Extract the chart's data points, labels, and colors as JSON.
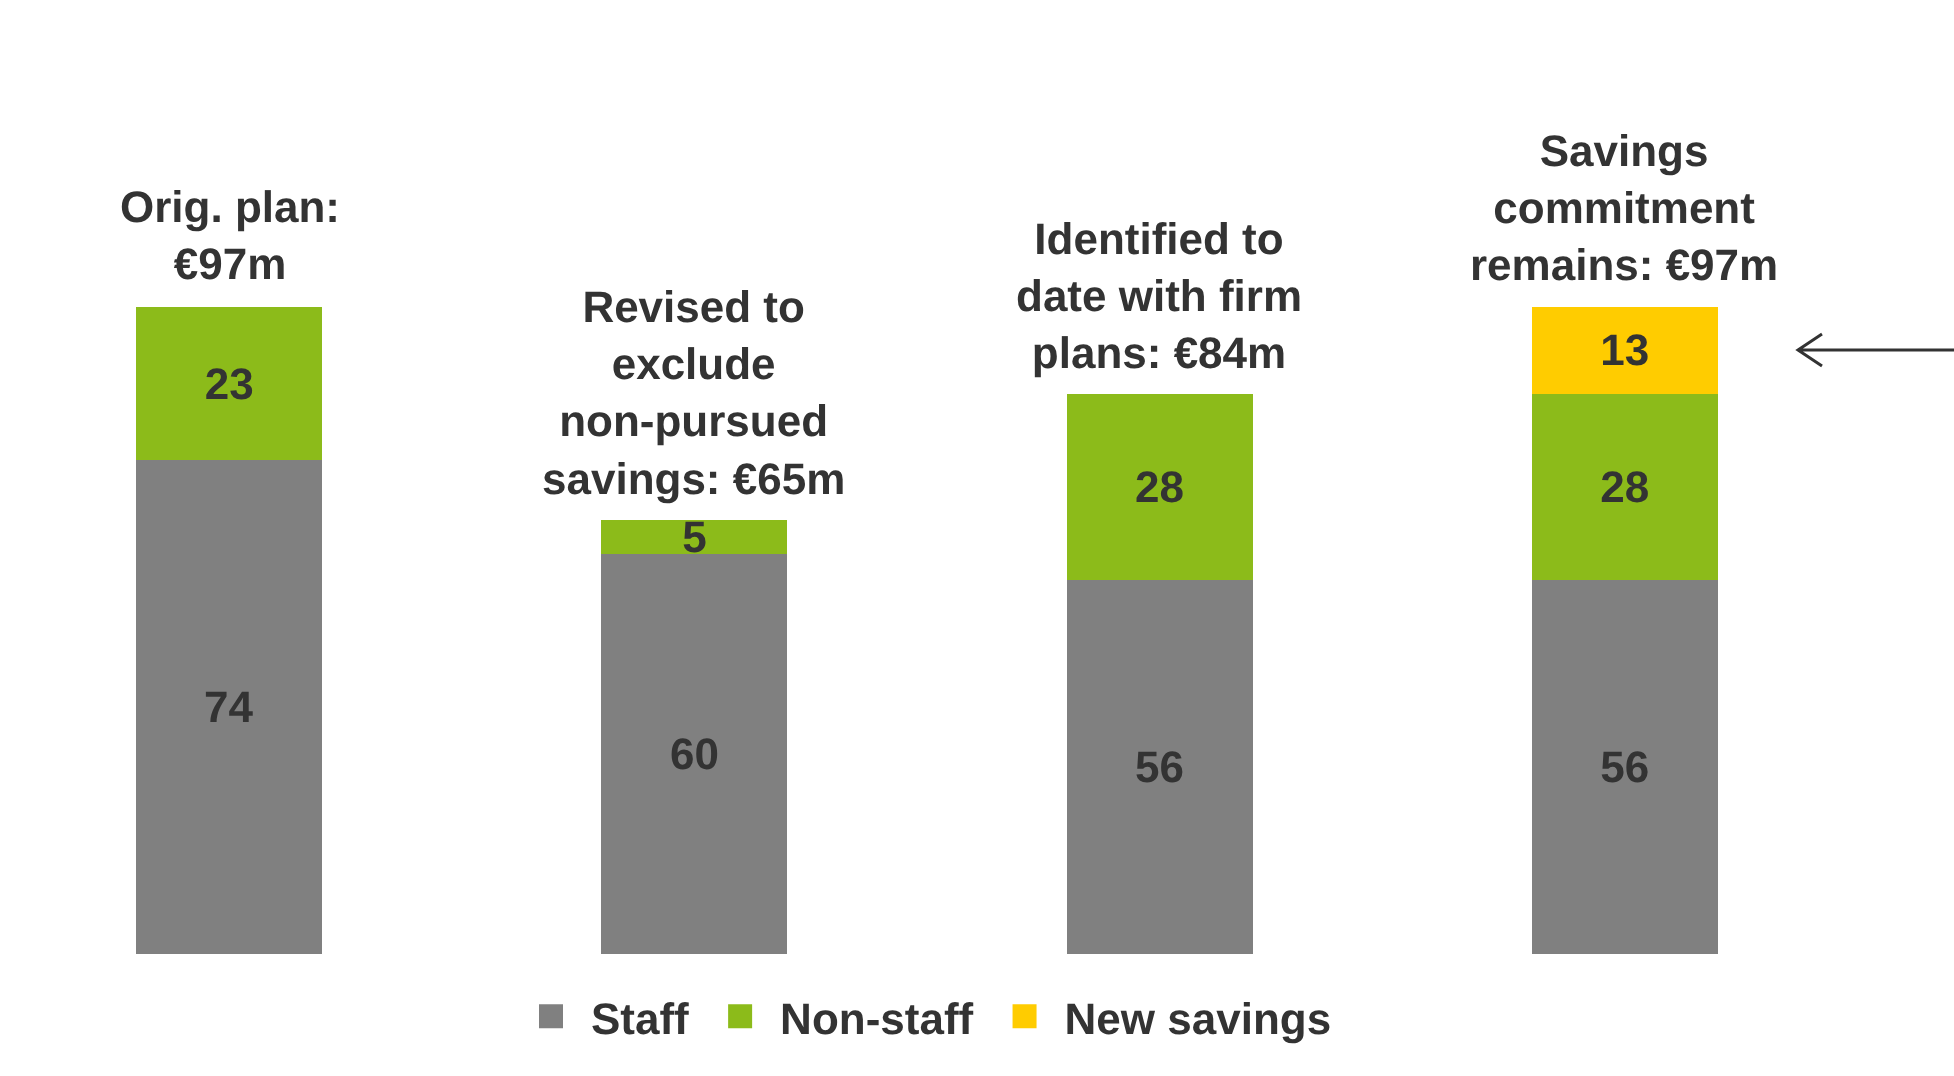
{
  "chart_data": {
    "type": "bar",
    "stacked": true,
    "data_labels": true,
    "legend": "bottom",
    "categories": [
      "Orig. plan: €97m",
      "Revised to exclude non-pursued savings: €65m",
      "Identified to date with firm plans: €84m",
      "Savings commitment remains: €97m"
    ],
    "series": [
      {
        "name": "Staff",
        "color": "#808080",
        "values": [
          74,
          60,
          56,
          56
        ]
      },
      {
        "name": "Non-staff",
        "color": "#8cbb1a",
        "values": [
          23,
          5,
          28,
          28
        ]
      },
      {
        "name": "New savings",
        "color": "#ffcc00",
        "values": [
          null,
          null,
          null,
          13
        ]
      }
    ]
  }
}
